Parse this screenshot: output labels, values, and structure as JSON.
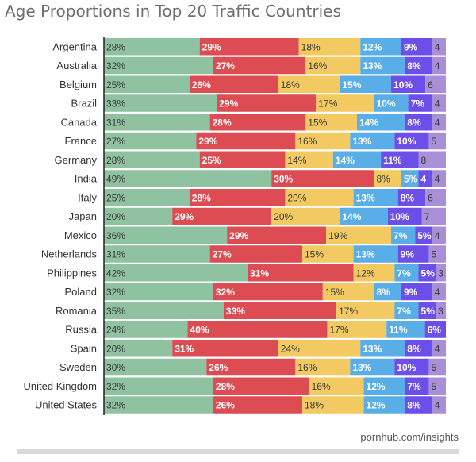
{
  "title": "Age Proportions in Top 20 Traffic Countries",
  "footer": "pornhub.com/insights",
  "colors": [
    "#8fc2a0",
    "#dc4c52",
    "#f3ca61",
    "#5aaee7",
    "#6c4ee8",
    "#a88fd8"
  ],
  "chart_data": {
    "type": "bar",
    "stacked": true,
    "orientation": "horizontal",
    "normalized": true,
    "grid": false,
    "legend": "none",
    "categories": [
      "Argentina",
      "Australia",
      "Belgium",
      "Brazil",
      "Canada",
      "France",
      "Germany",
      "India",
      "Italy",
      "Japan",
      "Mexico",
      "Netherlands",
      "Philippines",
      "Poland",
      "Romania",
      "Russia",
      "Spain",
      "Sweden",
      "United Kingdom",
      "United States"
    ],
    "series": [
      {
        "values": [
          28,
          32,
          25,
          33,
          31,
          27,
          28,
          49,
          25,
          20,
          36,
          31,
          42,
          32,
          35,
          24,
          20,
          30,
          32,
          32
        ],
        "labels": [
          "28%",
          "32%",
          "25%",
          "33%",
          "31%",
          "27%",
          "28%",
          "49%",
          "25%",
          "20%",
          "36%",
          "31%",
          "42%",
          "32%",
          "35%",
          "24%",
          "20%",
          "30%",
          "32%",
          "32%"
        ]
      },
      {
        "values": [
          29,
          27,
          26,
          29,
          28,
          29,
          25,
          30,
          28,
          29,
          29,
          27,
          31,
          32,
          33,
          40,
          31,
          26,
          28,
          26
        ],
        "labels": [
          "29%",
          "27%",
          "26%",
          "29%",
          "28%",
          "29%",
          "25%",
          "30%",
          "28%",
          "29%",
          "29%",
          "27%",
          "31%",
          "32%",
          "33%",
          "40%",
          "31%",
          "26%",
          "28%",
          "26%"
        ]
      },
      {
        "values": [
          18,
          16,
          18,
          17,
          15,
          16,
          14,
          8,
          20,
          20,
          19,
          15,
          12,
          15,
          17,
          17,
          24,
          16,
          16,
          18
        ],
        "labels": [
          "18%",
          "16%",
          "18%",
          "17%",
          "15%",
          "16%",
          "14%",
          "8%",
          "20%",
          "20%",
          "19%",
          "15%",
          "12%",
          "15%",
          "17%",
          "17%",
          "24%",
          "16%",
          "16%",
          "18%"
        ]
      },
      {
        "values": [
          12,
          13,
          15,
          10,
          14,
          13,
          14,
          5,
          13,
          14,
          7,
          13,
          7,
          8,
          7,
          11,
          13,
          13,
          12,
          12
        ],
        "labels": [
          "12%",
          "13%",
          "15%",
          "10%",
          "14%",
          "13%",
          "14%",
          "5%",
          "13%",
          "14%",
          "7%",
          "13%",
          "7%",
          "8%",
          "7%",
          "11%",
          "13%",
          "13%",
          "12%",
          "12%"
        ]
      },
      {
        "values": [
          9,
          8,
          10,
          7,
          8,
          10,
          11,
          4,
          8,
          10,
          5,
          9,
          5,
          9,
          5,
          6,
          8,
          10,
          7,
          8
        ],
        "labels": [
          "9%",
          "8%",
          "10%",
          "7%",
          "8%",
          "10%",
          "11%",
          "4",
          "8%",
          "10%",
          "5%",
          "9%",
          "5%",
          "9%",
          "5%",
          "6%",
          "8%",
          "10%",
          "7%",
          "8%"
        ]
      },
      {
        "values": [
          4,
          4,
          6,
          4,
          4,
          5,
          8,
          4,
          6,
          7,
          4,
          5,
          3,
          4,
          3,
          0,
          4,
          5,
          5,
          4
        ],
        "labels": [
          "4",
          "4",
          "6",
          "4",
          "4",
          "5",
          "8",
          "4",
          "6",
          "7",
          "4",
          "5",
          "3",
          "4",
          "3",
          "",
          "4",
          "5",
          "5",
          "4"
        ]
      }
    ]
  }
}
